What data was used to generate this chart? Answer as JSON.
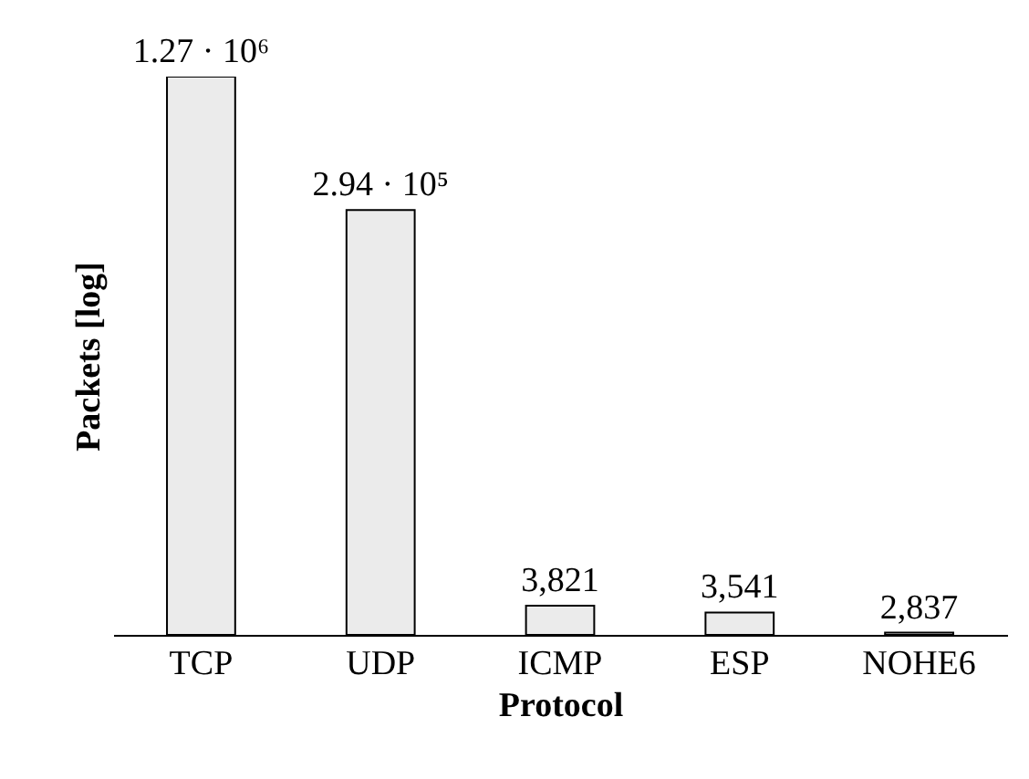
{
  "chart_data": {
    "type": "bar",
    "xlabel": "Protocol",
    "ylabel": "Packets [log]",
    "categories": [
      "TCP",
      "UDP",
      "ICMP",
      "ESP",
      "NOHE6"
    ],
    "values": [
      1270000,
      294000,
      3821,
      3541,
      2837
    ],
    "value_labels": [
      "1.27 · 10⁶",
      "2.94 · 10⁵",
      "3,821",
      "3,541",
      "2,837"
    ],
    "color": "#ebebeb",
    "log": true,
    "ylim": [
      2770,
      1270000
    ],
    "tick_labels": "x",
    "grid": false
  }
}
